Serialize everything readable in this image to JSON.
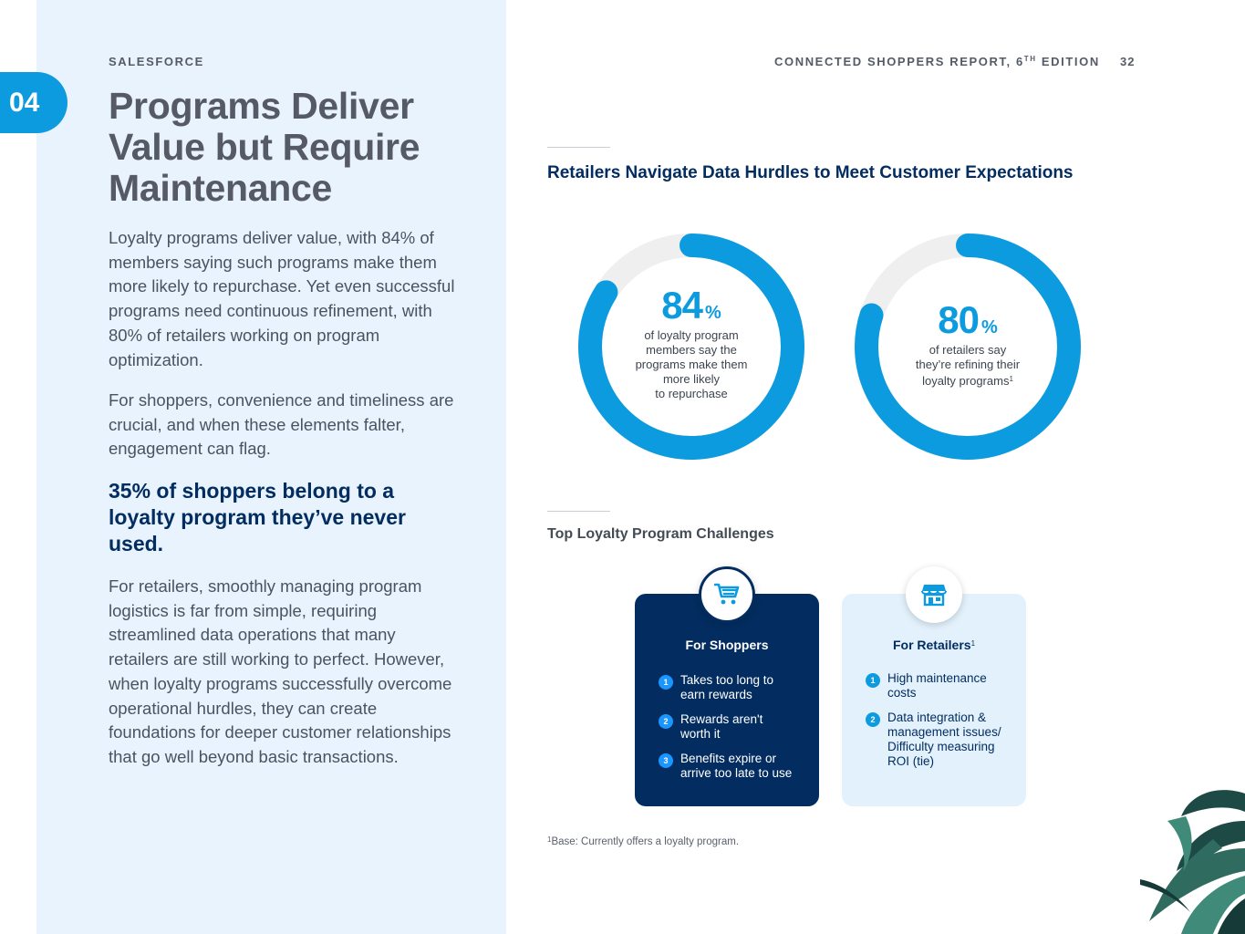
{
  "section": {
    "tab_number": "04"
  },
  "header": {
    "brand": "SALESFORCE",
    "report_title_prefix": "CONNECTED SHOPPERS REPORT, 6",
    "report_title_sup": "TH",
    "report_title_suffix": " EDITION",
    "page_number": "32"
  },
  "left": {
    "headline": "Programs Deliver Value but Require Maintenance",
    "paragraph_1": "Loyalty programs deliver value, with 84% of members saying such programs make them more likely to repurchase. Yet even successful programs need continuous refinement, with 80% of retailers working on program optimization.",
    "paragraph_2": "For shoppers, convenience and timeliness are crucial, and when these elements falter, engagement can flag.",
    "callout": "35% of shoppers belong to a loyalty program they’ve never used.",
    "paragraph_3": "For retailers, smoothly managing program logistics is far from simple, requiring streamlined data operations that many retailers are still working to perfect. However, when loyalty programs successfully overcome operational hurdles, they can create foundations for deeper customer relationships that go well beyond basic transactions."
  },
  "chart_data": {
    "type": "donut",
    "title": "Retailers Navigate Data Hurdles to Meet Customer Expectations",
    "items": [
      {
        "value": 84,
        "unit": "%",
        "label": "of loyalty program members say the programs make them more likely to repurchase"
      },
      {
        "value": 80,
        "unit": "%",
        "label": "of retailers say they’re refining their loyalty programs",
        "footnote_marker": "1"
      }
    ],
    "fill_color": "#0d9be0",
    "track_color": "#efefef"
  },
  "donuts": [
    {
      "number": "84",
      "unit": "%",
      "lines": [
        "of loyalty program",
        "members say the",
        "programs make them",
        "more likely",
        "to repurchase"
      ]
    },
    {
      "number": "80",
      "unit": "%",
      "lines": [
        "of retailers say",
        "they’re refining their",
        "loyalty programs"
      ],
      "sup": "1"
    }
  ],
  "challenges": {
    "title": "Top Loyalty Program Challenges",
    "shoppers": {
      "heading": "For Shoppers",
      "icon": "shopping-cart-icon",
      "items": [
        {
          "n": "1",
          "lines": [
            "Takes too long to",
            "earn rewards"
          ]
        },
        {
          "n": "2",
          "lines": [
            "Rewards aren't",
            "worth it"
          ]
        },
        {
          "n": "3",
          "lines": [
            "Benefits expire or",
            "arrive too late to use"
          ]
        }
      ]
    },
    "retailers": {
      "heading": "For Retailers",
      "heading_sup": "1",
      "icon": "storefront-icon",
      "items": [
        {
          "n": "1",
          "lines": [
            "High maintenance",
            "costs"
          ]
        },
        {
          "n": "2",
          "lines": [
            "Data integration &",
            "management issues/",
            "Difficulty measuring",
            "ROI (tie)"
          ]
        }
      ]
    }
  },
  "footnote": {
    "sup": "1",
    "text": "Base: Currently offers a loyalty program."
  },
  "colors": {
    "accent": "#0d9be0",
    "navy": "#032d60",
    "panel": "#e8f3fd"
  }
}
